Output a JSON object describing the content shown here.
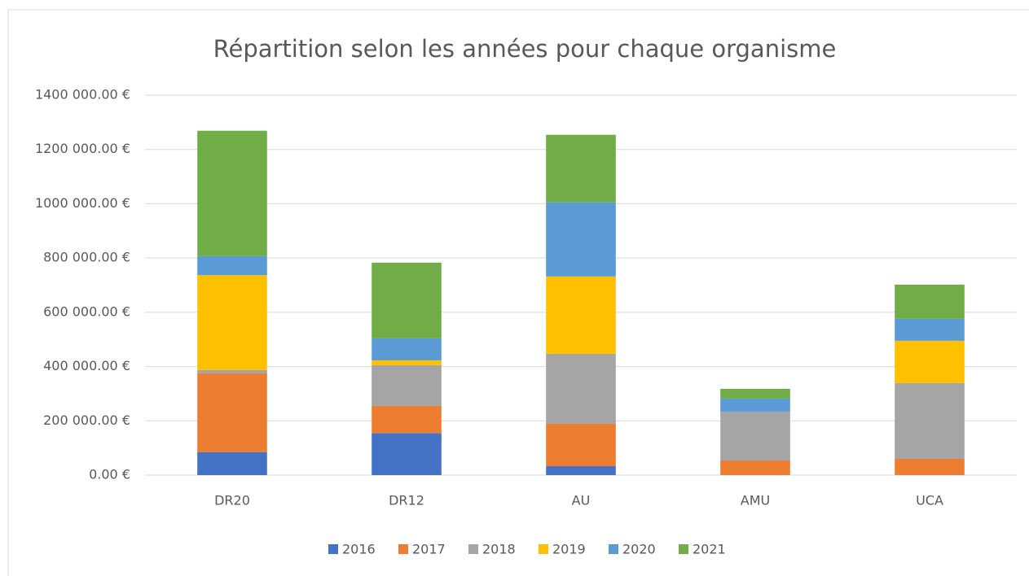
{
  "chart_data": {
    "type": "stacked_bar",
    "title": "Répartition selon les années pour chaque organisme",
    "categories": [
      "DR20",
      "DR12",
      "AU",
      "AMU",
      "UCA"
    ],
    "series": [
      {
        "name": "2016",
        "color": "#4472c4",
        "values": [
          85000,
          155000,
          33000,
          0,
          0
        ]
      },
      {
        "name": "2017",
        "color": "#ed7d31",
        "values": [
          290000,
          100000,
          156000,
          54000,
          60000
        ]
      },
      {
        "name": "2018",
        "color": "#a5a5a5",
        "values": [
          12000,
          150000,
          258000,
          180000,
          279000
        ]
      },
      {
        "name": "2019",
        "color": "#ffc000",
        "values": [
          350000,
          18000,
          285000,
          0,
          156000
        ]
      },
      {
        "name": "2020",
        "color": "#5b9bd5",
        "values": [
          70000,
          81000,
          273000,
          48000,
          81000
        ]
      },
      {
        "name": "2021",
        "color": "#70ad47",
        "values": [
          462000,
          279000,
          249000,
          36000,
          126000
        ]
      }
    ],
    "ylim": [
      0,
      1400000
    ],
    "yticks": [
      {
        "value": 0,
        "label": "0.00 €"
      },
      {
        "value": 200000,
        "label": "200 000.00 €"
      },
      {
        "value": 400000,
        "label": "400 000.00 €"
      },
      {
        "value": 600000,
        "label": "600 000.00 €"
      },
      {
        "value": 800000,
        "label": "800 000.00 €"
      },
      {
        "value": 1000000,
        "label": "1000 000.00 €"
      },
      {
        "value": 1200000,
        "label": "1200 000.00 €"
      },
      {
        "value": 1400000,
        "label": "1400 000.00 €"
      }
    ],
    "grid": true,
    "legend": "bottom"
  }
}
